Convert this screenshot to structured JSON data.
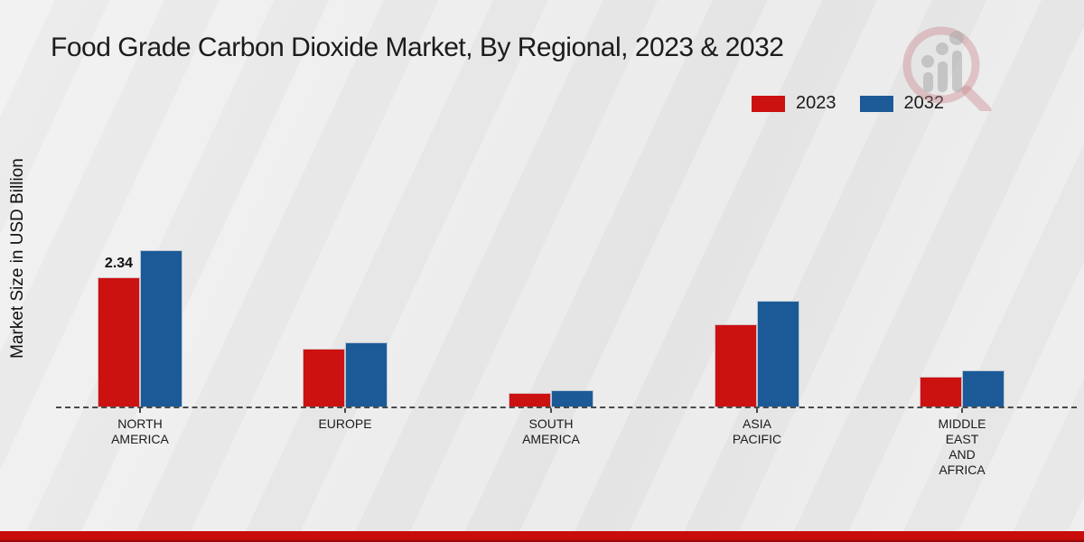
{
  "page": {
    "title": "Food Grade Carbon Dioxide Market, By Regional, 2023 & 2032",
    "ylabel": "Market Size in USD Billion"
  },
  "colors": {
    "series_2023": "#cc1111",
    "series_2032": "#1b5a96",
    "footer_band": "#c90c0c",
    "background": "#e9e9e9",
    "axis": "#4a4a4a"
  },
  "icons": {
    "watermark": "magnifier-growth-chart-logo"
  },
  "chart_data": {
    "type": "bar",
    "title": "Food Grade Carbon Dioxide Market, By Regional, 2023 & 2032",
    "xlabel": "",
    "ylabel": "Market Size in USD Billion",
    "categories": [
      [
        "NORTH",
        "AMERICA"
      ],
      [
        "EUROPE"
      ],
      [
        "SOUTH",
        "AMERICA"
      ],
      [
        "ASIA",
        "PACIFIC"
      ],
      [
        "MIDDLE",
        "EAST",
        "AND",
        "AFRICA"
      ]
    ],
    "series": [
      {
        "name": "2023",
        "color": "#cc1111",
        "values": [
          2.34,
          1.05,
          0.26,
          1.5,
          0.55
        ],
        "data_labels": [
          "2.34",
          "",
          "",
          "",
          ""
        ]
      },
      {
        "name": "2032",
        "color": "#1b5a96",
        "values": [
          2.83,
          1.17,
          0.31,
          1.92,
          0.67
        ]
      }
    ],
    "ylim": [
      0,
      3
    ],
    "grid": false,
    "axis_style": "dashed-baseline-only",
    "legend_position": "top-right"
  }
}
